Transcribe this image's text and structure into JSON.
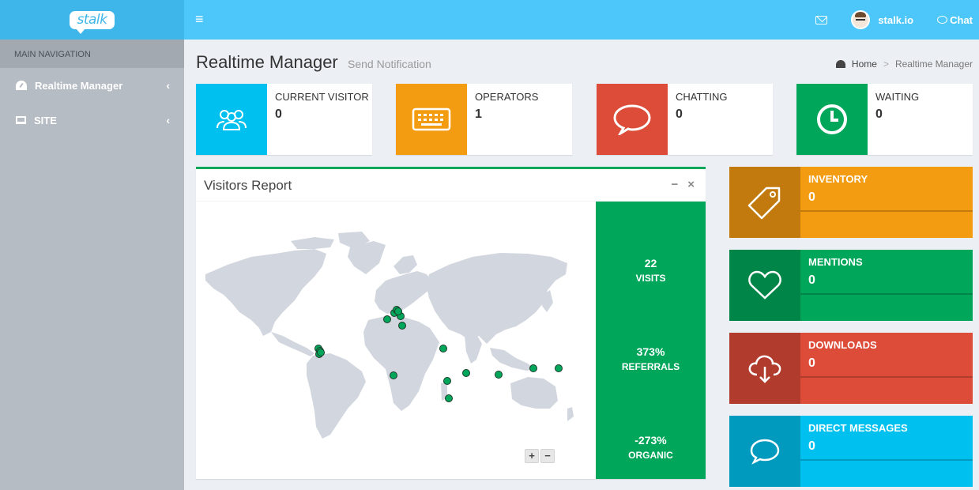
{
  "brand": {
    "logo_text": "stalk"
  },
  "header": {
    "menu_icon": "hamburger-icon",
    "user_name": "stalk.io",
    "chat_label": "Chat"
  },
  "sidebar": {
    "header": "MAIN NAVIGATION",
    "items": [
      {
        "label": "Realtime Manager",
        "icon": "dashboard-icon"
      },
      {
        "label": "SITE",
        "icon": "laptop-icon"
      }
    ]
  },
  "page": {
    "title": "Realtime Manager",
    "subtitle": "Send Notification",
    "breadcrumb": [
      "Home",
      "Realtime Manager"
    ]
  },
  "info_boxes": [
    {
      "label": "CURRENT VISITOR",
      "value": "0",
      "color": "#00c0ef",
      "icon": "users-icon"
    },
    {
      "label": "OPERATORS",
      "value": "1",
      "color": "#f39c12",
      "icon": "keyboard-icon"
    },
    {
      "label": "CHATTING",
      "value": "0",
      "color": "#dd4b39",
      "icon": "speech-bubble-icon"
    },
    {
      "label": "WAITING",
      "value": "0",
      "color": "#00a65a",
      "icon": "clock-icon"
    }
  ],
  "visitors_report": {
    "title": "Visitors Report",
    "zoom_in": "+",
    "zoom_out": "−",
    "stats": [
      {
        "value": "22",
        "label": "VISITS"
      },
      {
        "value": "373%",
        "label": "REFERRALS"
      },
      {
        "value": "-273%",
        "label": "ORGANIC"
      }
    ]
  },
  "side_boxes": [
    {
      "label": "INVENTORY",
      "value": "0",
      "color": "#f39c12",
      "dark": "#c27a0e",
      "icon": "tag-icon"
    },
    {
      "label": "MENTIONS",
      "value": "0",
      "color": "#00a65a",
      "dark": "#008548",
      "icon": "heart-icon"
    },
    {
      "label": "DOWNLOADS",
      "value": "0",
      "color": "#dd4b39",
      "dark": "#b13c2e",
      "icon": "cloud-download-icon"
    },
    {
      "label": "DIRECT MESSAGES",
      "value": "0",
      "color": "#00c0ef",
      "dark": "#009abf",
      "icon": "comment-icon"
    }
  ]
}
